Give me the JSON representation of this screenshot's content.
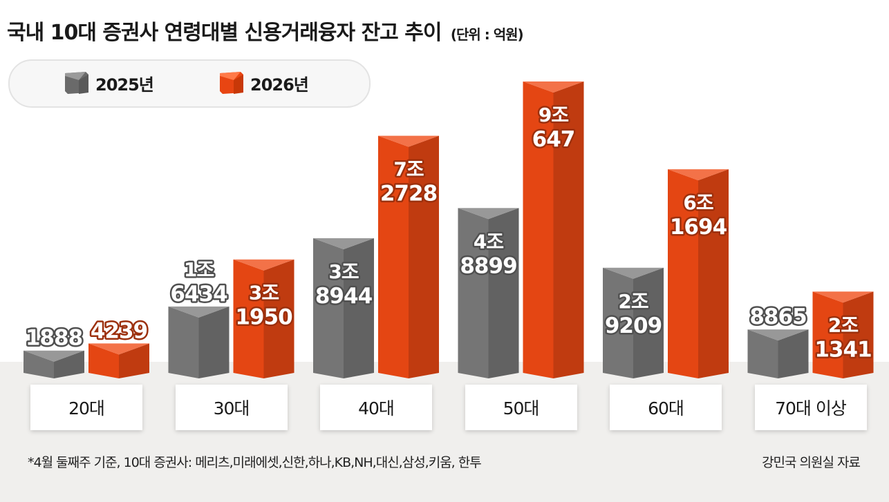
{
  "title": "국내 10대 증권사 연령대별 신용거래융자 잔고 추이",
  "unit_note": "(단위 : 억원)",
  "colors": {
    "series_2025": "#7b7b7b",
    "series_2026": "#f04a14",
    "floor": "#f0efed"
  },
  "chart_data": {
    "type": "bar",
    "categories": [
      "20대",
      "30대",
      "40대",
      "50대",
      "60대",
      "70대 이상"
    ],
    "series": [
      {
        "name": "2025년",
        "values": [
          1888,
          16434,
          38944,
          48899,
          29209,
          8865
        ],
        "labels": [
          [
            "1888"
          ],
          [
            "1조",
            "6434"
          ],
          [
            "3조",
            "8944"
          ],
          [
            "4조",
            "8899"
          ],
          [
            "2조",
            "9209"
          ],
          [
            "8865"
          ]
        ]
      },
      {
        "name": "2026년",
        "values": [
          4239,
          31950,
          72728,
          90647,
          61694,
          21341
        ],
        "labels": [
          [
            "4239"
          ],
          [
            "3조",
            "1950"
          ],
          [
            "7조",
            "2728"
          ],
          [
            "9조",
            "647"
          ],
          [
            "6조",
            "1694"
          ],
          [
            "2조",
            "1341"
          ]
        ]
      }
    ],
    "ylabel": "",
    "ylim": [
      0,
      90647
    ],
    "legend": "top-left",
    "grid": false
  },
  "footnote": "*4월 둘째주 기준, 10대 증권사: 메리츠,미래에셋,신한,하나,KB,NH,대신,삼성,키움, 한투",
  "source": "강민국 의원실 자료"
}
